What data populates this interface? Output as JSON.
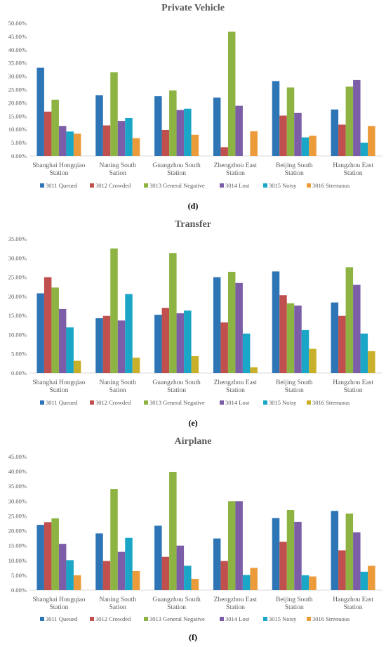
{
  "panels": [
    {
      "title": "Private Vehicle",
      "label": "(d)"
    },
    {
      "title": "Transfer",
      "label": "(e)"
    },
    {
      "title": "Airplane",
      "label": "(f)"
    }
  ],
  "chart_data": [
    {
      "type": "bar",
      "title": "Private Vehicle",
      "categories": [
        "Shanghai Hongqiao Station",
        "Naning South Sation",
        "Guangzhou South Station",
        "Zhengzhou East Station",
        "Beijing South Station",
        "Hangzhou East Station"
      ],
      "ylim": [
        0,
        50
      ],
      "yticks": [
        "0.00%",
        "5.00%",
        "10.00%",
        "15.00%",
        "20.00%",
        "25.00%",
        "30.00%",
        "35.00%",
        "40.00%",
        "45.00%",
        "50.00%"
      ],
      "ystep": 5,
      "grid": false,
      "legend_position": "bottom",
      "series": [
        {
          "name": "3011 Queued",
          "color": "#2e75b6",
          "values": [
            33.2,
            22.9,
            22.5,
            22.0,
            28.2,
            17.5
          ]
        },
        {
          "name": "3012 Crowded",
          "color": "#c0504d",
          "values": [
            16.7,
            11.5,
            9.8,
            3.3,
            15.2,
            11.8
          ]
        },
        {
          "name": "3013 General Negative",
          "color": "#8db443",
          "values": [
            21.2,
            31.5,
            24.7,
            46.8,
            25.8,
            26.1
          ]
        },
        {
          "name": "3014 Lost",
          "color": "#7b5ea7",
          "values": [
            11.3,
            13.2,
            17.3,
            18.9,
            16.2,
            28.6
          ]
        },
        {
          "name": "3015 Noisy",
          "color": "#1aa6c7",
          "values": [
            9.2,
            14.3,
            17.8,
            0,
            7.0,
            5.0
          ]
        },
        {
          "name": "3016 Strenuous",
          "color": "#eb9b3a",
          "values": [
            8.4,
            6.7,
            8.0,
            9.3,
            7.6,
            11.3
          ]
        }
      ]
    },
    {
      "type": "bar",
      "title": "Transfer",
      "categories": [
        "Shanghai Hongqiao Station",
        "Naning South Sation",
        "Guangzhou South Station",
        "Zhengzhou East Station",
        "Beijing South Station",
        "Hangzhou East Station"
      ],
      "ylim": [
        0,
        35
      ],
      "yticks": [
        "0.00%",
        "5.00%",
        "10.00%",
        "15.00%",
        "20.00%",
        "25.00%",
        "30.00%",
        "35.00%"
      ],
      "ystep": 5,
      "grid": false,
      "legend_position": "bottom",
      "series": [
        {
          "name": "3011 Queued",
          "color": "#2e75b6",
          "values": [
            20.8,
            14.3,
            15.2,
            25.0,
            26.5,
            18.4
          ]
        },
        {
          "name": "3012 Crowded",
          "color": "#c0504d",
          "values": [
            25.0,
            14.9,
            17.0,
            13.2,
            20.3,
            14.9
          ]
        },
        {
          "name": "3013 General Negative",
          "color": "#8db443",
          "values": [
            22.3,
            32.5,
            31.3,
            26.4,
            18.2,
            27.6
          ]
        },
        {
          "name": "3014 Lost",
          "color": "#7b5ea7",
          "values": [
            16.7,
            13.7,
            15.6,
            23.5,
            17.6,
            23.0
          ]
        },
        {
          "name": "3015 Noisy",
          "color": "#1aa6c7",
          "values": [
            11.9,
            20.6,
            16.3,
            10.3,
            11.2,
            10.3
          ]
        },
        {
          "name": "3016 Strenuous",
          "color": "#c9b02a",
          "values": [
            3.2,
            4.0,
            4.4,
            1.5,
            6.3,
            5.7
          ]
        }
      ]
    },
    {
      "type": "bar",
      "title": "Airplane",
      "categories": [
        "Shanghai Hongqiao Station",
        "Naning South Sation",
        "Guangzhou South Station",
        "Zhengzhou East Station",
        "Beijing South Station",
        "Hangzhou East Station"
      ],
      "ylim": [
        0,
        45
      ],
      "yticks": [
        "0.00%",
        "5.00%",
        "10.00%",
        "15.00%",
        "20.00%",
        "25.00%",
        "30.00%",
        "35.00%",
        "40.00%",
        "45.00%"
      ],
      "ystep": 5,
      "grid": false,
      "legend_position": "bottom",
      "series": [
        {
          "name": "3011 Queued",
          "color": "#2e75b6",
          "values": [
            22.0,
            19.1,
            21.7,
            17.4,
            24.3,
            26.7
          ]
        },
        {
          "name": "3012 Crowded",
          "color": "#c0504d",
          "values": [
            22.9,
            9.8,
            11.2,
            9.8,
            16.3,
            13.4
          ]
        },
        {
          "name": "3013 General Negative",
          "color": "#8db443",
          "values": [
            24.2,
            34.1,
            39.8,
            30.0,
            27.0,
            25.8
          ]
        },
        {
          "name": "3014 Lost",
          "color": "#7b5ea7",
          "values": [
            15.6,
            12.9,
            15.0,
            30.0,
            23.0,
            19.5
          ]
        },
        {
          "name": "3015 Noisy",
          "color": "#1aa6c7",
          "values": [
            10.1,
            17.6,
            8.2,
            5.1,
            5.0,
            6.2
          ]
        },
        {
          "name": "3016 Strenuous",
          "color": "#eb9b3a",
          "values": [
            5.0,
            6.4,
            3.8,
            7.5,
            4.6,
            8.2
          ]
        }
      ]
    }
  ]
}
